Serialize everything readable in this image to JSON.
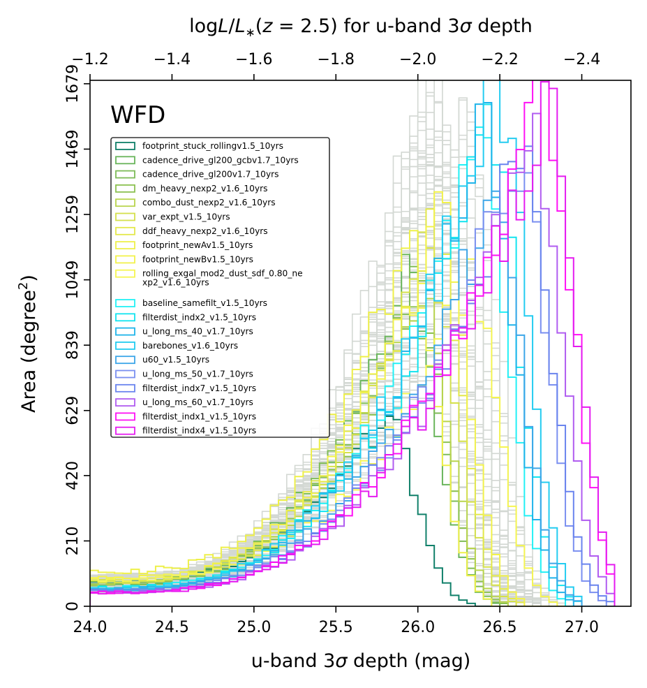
{
  "chart_data": {
    "type": "histogram",
    "title": "",
    "panel_label": "WFD",
    "top_axis_label": "logL/L*(z = 2.5) for u-band 3σ depth",
    "top_axis_label_parts": [
      "log",
      "L",
      "/",
      "L",
      "∗",
      "(",
      "z",
      " = 2.5)",
      " for u-band 3",
      "σ",
      " depth"
    ],
    "top_ticks": [
      "−1.2",
      "−1.4",
      "−1.6",
      "−1.8",
      "−2.0",
      "−2.2",
      "−2.4"
    ],
    "top_tick_values": [
      -1.2,
      -1.4,
      -1.6,
      -1.8,
      -2.0,
      -2.2,
      -2.4
    ],
    "xlabel": "u-band 3σ depth (mag)",
    "xlabel_parts": [
      "u-band 3",
      "σ",
      " depth (mag)"
    ],
    "ylabel": "Area (degree²)",
    "ylabel_parts": [
      "Area (degree",
      "2",
      ")"
    ],
    "xlim": [
      24.0,
      27.3
    ],
    "ylim": [
      0,
      1690
    ],
    "x_ticks": [
      "24.0",
      "24.5",
      "25.0",
      "25.5",
      "26.0",
      "26.5",
      "27.0"
    ],
    "x_tick_values": [
      24.0,
      24.5,
      25.0,
      25.5,
      26.0,
      26.5,
      27.0
    ],
    "y_ticks": [
      "0",
      "210",
      "420",
      "629",
      "839",
      "1049",
      "1259",
      "1469",
      "1679"
    ],
    "y_tick_values": [
      0,
      210,
      420,
      629,
      839,
      1049,
      1259,
      1469,
      1679
    ],
    "bin_width": 0.05,
    "legend_location": "upper-left",
    "background_runs": {
      "color": "#d3d8d3",
      "count": 60
    },
    "series": [
      {
        "name": "footprint_stuck_rollingv1.5_10yrs",
        "color": "#11806a",
        "peak_x": 25.8,
        "peak_y": 630,
        "lo_y": 80
      },
      {
        "name": "cadence_drive_gl200_gcbv1.7_10yrs",
        "color": "#69b55b",
        "peak_x": 25.93,
        "peak_y": 1070,
        "lo_y": 70
      },
      {
        "name": "cadence_drive_gl200v1.7_10yrs",
        "color": "#7ebb58",
        "peak_x": 25.95,
        "peak_y": 1030,
        "lo_y": 70
      },
      {
        "name": "dm_heavy_nexp2_v1.6_10yrs",
        "color": "#8cc152",
        "peak_x": 25.98,
        "peak_y": 1000,
        "lo_y": 75
      },
      {
        "name": "combo_dust_nexp2_v1.6_10yrs",
        "color": "#b8d44e",
        "peak_x": 26.0,
        "peak_y": 1040,
        "lo_y": 75
      },
      {
        "name": "var_expt_v1.5_10yrs",
        "color": "#d4e04c",
        "peak_x": 26.05,
        "peak_y": 1150,
        "lo_y": 80
      },
      {
        "name": "ddf_heavy_nexp2_v1.6_10yrs",
        "color": "#e3e84b",
        "peak_x": 26.08,
        "peak_y": 1200,
        "lo_y": 80
      },
      {
        "name": "footprint_newAv1.5_10yrs",
        "color": "#eef04a",
        "peak_x": 25.92,
        "peak_y": 1180,
        "lo_y": 110
      },
      {
        "name": "footprint_newBv1.5_10yrs",
        "color": "#f2f24c",
        "peak_x": 26.12,
        "peak_y": 1250,
        "lo_y": 90
      },
      {
        "name": "rolling_exgal_mod2_dust_sdf_0.80_nexp2_v1.6_10yrs",
        "color": "#f5f552",
        "peak_x": 26.3,
        "peak_y": 1060,
        "lo_y": 85
      },
      {
        "name": "baseline_samefilt_v1.5_10yrs",
        "color": "#22f0f5",
        "peak_x": 26.36,
        "peak_y": 1500,
        "lo_y": 60
      },
      {
        "name": "filterdist_indx2_v1.5_10yrs",
        "color": "#12e4ef",
        "peak_x": 26.43,
        "peak_y": 1520,
        "lo_y": 60
      },
      {
        "name": "u_long_ms_40_v1.7_10yrs",
        "color": "#1fb4ea",
        "peak_x": 26.4,
        "peak_y": 1540,
        "lo_y": 55
      },
      {
        "name": "barebones_v1.6_10yrs",
        "color": "#23ccf0",
        "peak_x": 26.47,
        "peak_y": 1700,
        "lo_y": 55
      },
      {
        "name": "u60_v1.5_10yrs",
        "color": "#3ca6e8",
        "peak_x": 26.45,
        "peak_y": 1330,
        "lo_y": 55
      },
      {
        "name": "u_long_ms_50_v1.7_10yrs",
        "color": "#7a8ff0",
        "peak_x": 26.6,
        "peak_y": 1470,
        "lo_y": 50
      },
      {
        "name": "filterdist_indx7_v1.5_10yrs",
        "color": "#6a84ee",
        "peak_x": 26.63,
        "peak_y": 1480,
        "lo_y": 50
      },
      {
        "name": "u_long_ms_60_v1.7_10yrs",
        "color": "#b05cf0",
        "peak_x": 26.7,
        "peak_y": 1520,
        "lo_y": 45
      },
      {
        "name": "filterdist_indx1_v1.5_10yrs",
        "color": "#ff10f5",
        "peak_x": 26.76,
        "peak_y": 1670,
        "lo_y": 45
      },
      {
        "name": "filterdist_indx4_v1.5_10yrs",
        "color": "#e51cf0",
        "peak_x": 26.78,
        "peak_y": 1630,
        "lo_y": 42
      }
    ],
    "legend_display_names": [
      "footprint_stuck_rollingv1.5_10yrs",
      "cadence_drive_gl200_gcbv1.7_10yrs",
      "cadence_drive_gl200v1.7_10yrs",
      "dm_heavy_nexp2_v1.6_10yrs",
      "combo_dust_nexp2_v1.6_10yrs",
      "var_expt_v1.5_10yrs",
      "ddf_heavy_nexp2_v1.6_10yrs",
      "footprint_newAv1.5_10yrs",
      "footprint_newBv1.5_10yrs",
      "rolling_exgal_mod2_dust_sdf_0.80_ne",
      "baseline_samefilt_v1.5_10yrs",
      "filterdist_indx2_v1.5_10yrs",
      "u_long_ms_40_v1.7_10yrs",
      "barebones_v1.6_10yrs",
      "u60_v1.5_10yrs",
      "u_long_ms_50_v1.7_10yrs",
      "filterdist_indx7_v1.5_10yrs",
      "u_long_ms_60_v1.7_10yrs",
      "filterdist_indx1_v1.5_10yrs",
      "filterdist_indx4_v1.5_10yrs"
    ],
    "legend_wrap_continuation": "xp2_v1.6_10yrs"
  }
}
